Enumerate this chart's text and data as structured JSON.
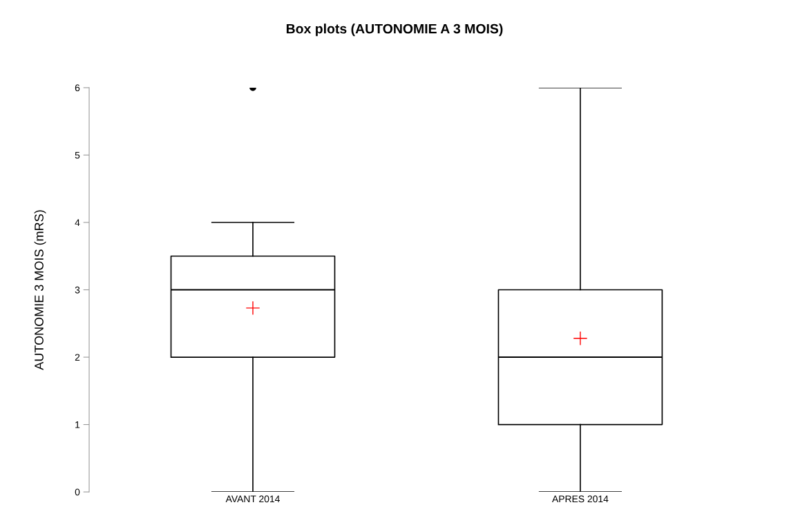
{
  "chart_data": {
    "type": "box",
    "title": "Box plots (AUTONOMIE A 3 MOIS)",
    "ylabel": "AUTONOMIE 3 MOIS (mRS)",
    "categories": [
      "AVANT 2014",
      "APRES 2014"
    ],
    "boxes": [
      {
        "low": 0,
        "q1": 2,
        "median": 3,
        "q3": 3.5,
        "high": 4,
        "mean": 2.73,
        "outliers": [
          6
        ]
      },
      {
        "low": 0,
        "q1": 1,
        "median": 2,
        "q3": 3,
        "high": 6,
        "mean": 2.28
      }
    ],
    "ylim": [
      0,
      6
    ],
    "yticks": [
      0,
      1,
      2,
      3,
      4,
      5,
      6
    ],
    "grid": false,
    "legend": false
  }
}
